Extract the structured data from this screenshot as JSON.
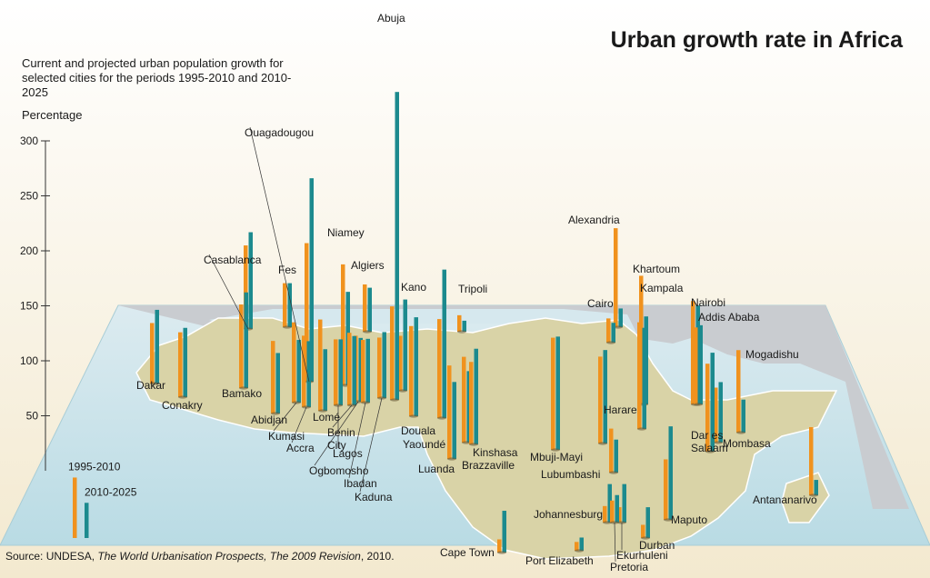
{
  "title": "Urban growth rate in Africa",
  "subtitle": "Current and projected urban population growth for selected cities for the periods 1995-2010 and 2010-2025",
  "unit": "Percentage",
  "source": {
    "prefix": "Source: UNDESA, ",
    "title": "The World Urbanisation Prospects, The 2009 Revision",
    "suffix": ", 2010."
  },
  "colors": {
    "series_1995_2010": "#f0921e",
    "series_2010_2025": "#1c8a8e",
    "land": "#d8d2a6",
    "sea": "#cfe6ec",
    "other_land": "#c8ccd0",
    "background": "#f6f1e4"
  },
  "chart_data": {
    "type": "bar",
    "ylim": [
      0,
      300
    ],
    "yticks": [
      50,
      100,
      150,
      200,
      250,
      300
    ],
    "ylabel": "Percentage",
    "series": [
      {
        "name": "1995-2010",
        "color": "#f0921e"
      },
      {
        "name": "2010-2025",
        "color": "#1c8a8e"
      }
    ],
    "cities": [
      {
        "name": "Dakar",
        "v1995": 55,
        "v2010": 67
      },
      {
        "name": "Conakry",
        "v1995": 59,
        "v2010": 63
      },
      {
        "name": "Bamako",
        "v1995": 76,
        "v2010": 87
      },
      {
        "name": "Abidjan",
        "v1995": 66,
        "v2010": 55
      },
      {
        "name": "Kumasi",
        "v1995": 73,
        "v2010": 57
      },
      {
        "name": "Accra",
        "v1995": 65,
        "v2010": 60
      },
      {
        "name": "Lomé",
        "v1995": 83,
        "v2010": 56
      },
      {
        "name": "Benin City",
        "v1995": 66,
        "v2010": 63
      },
      {
        "name": "Lagos",
        "v1995": 60,
        "v2010": 60
      },
      {
        "name": "Ogbomosho",
        "v1995": 60,
        "v2010": 58
      },
      {
        "name": "Ibadan",
        "v1995": 57,
        "v2010": 58
      },
      {
        "name": "Kaduna",
        "v1995": 55,
        "v2010": 60
      },
      {
        "name": "Casablanca",
        "v1995": 76,
        "v2010": 88
      },
      {
        "name": "Fes",
        "v1995": 40,
        "v2010": 40
      },
      {
        "name": "Ouagadougou",
        "v1995": 126,
        "v2010": 185
      },
      {
        "name": "Niamey",
        "v1995": 110,
        "v2010": 85
      },
      {
        "name": "Algiers",
        "v1995": 43,
        "v2010": 40
      },
      {
        "name": "Abuja",
        "v1995": 85,
        "v2010": 280
      },
      {
        "name": "Kano",
        "v1995": 50,
        "v2010": 83
      },
      {
        "name": "Tripoli",
        "v1995": 15,
        "v2010": 10
      },
      {
        "name": "Douala",
        "v1995": 82,
        "v2010": 90
      },
      {
        "name": "Yaoundé",
        "v1995": 90,
        "v2010": 135
      },
      {
        "name": "Luanda",
        "v1995": 85,
        "v2010": 70
      },
      {
        "name": "Kinshasa",
        "v1995": 78,
        "v2010": 65
      },
      {
        "name": "Brazzaville",
        "v1995": 75,
        "v2010": 87
      },
      {
        "name": "Mbuji-Mayi",
        "v1995": 102,
        "v2010": 103
      },
      {
        "name": "Lubumbashi",
        "v1995": 79,
        "v2010": 85
      },
      {
        "name": "Cairo",
        "v1995": 22,
        "v2010": 18
      },
      {
        "name": "Alexandria",
        "v1995": 90,
        "v2010": 17
      },
      {
        "name": "Khartoum",
        "v1995": 97,
        "v2010": 92
      },
      {
        "name": "Kampala",
        "v1995": 117,
        "v2010": 80
      },
      {
        "name": "Harare",
        "v1995": 40,
        "v2010": 30
      },
      {
        "name": "Nairobi",
        "v1995": 94,
        "v2010": 90
      },
      {
        "name": "Addis Ababa",
        "v1995": 70,
        "v2010": 72
      },
      {
        "name": "Dar es Salaam",
        "v1995": 80,
        "v2010": 90
      },
      {
        "name": "Mogadishu",
        "v1995": 75,
        "v2010": 30
      },
      {
        "name": "Mombasa",
        "v1995": 50,
        "v2010": 55
      },
      {
        "name": "Antananarivo",
        "v1995": 62,
        "v2010": 14
      },
      {
        "name": "Johannesburg",
        "v1995": 15,
        "v2010": 35
      },
      {
        "name": "Ekurhuleni",
        "v1995": 14,
        "v2010": 35
      },
      {
        "name": "Pretoria",
        "v1995": 20,
        "v2010": 25
      },
      {
        "name": "Durban",
        "v1995": 12,
        "v2010": 28
      },
      {
        "name": "Maputo",
        "v1995": 55,
        "v2010": 85
      },
      {
        "name": "Cape Town",
        "v1995": 12,
        "v2010": 38
      },
      {
        "name": "Port Elizabeth",
        "v1995": 8,
        "v2010": 12
      }
    ],
    "legend": [
      {
        "label": "1995-2010",
        "value": 55
      },
      {
        "label": "2010-2025",
        "value": 32
      }
    ]
  }
}
